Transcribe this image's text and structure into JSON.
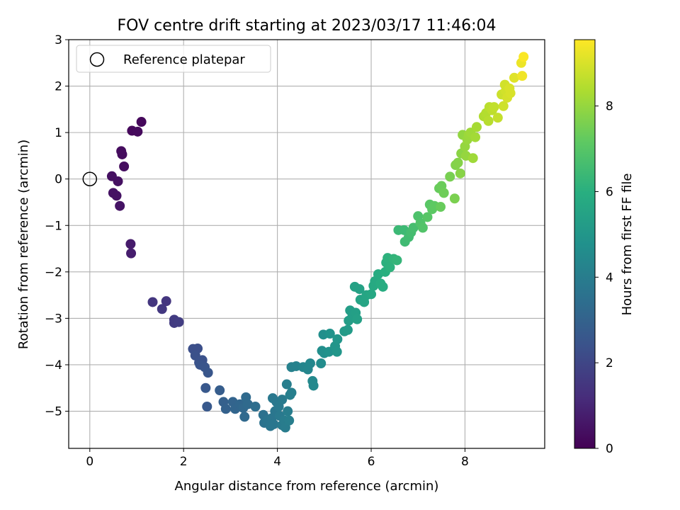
{
  "chart_data": {
    "type": "scatter",
    "title": "FOV centre drift starting at 2023/03/17 11:46:04",
    "xlabel": "Angular distance from reference (arcmin)",
    "ylabel": "Rotation from reference (arcmin)",
    "xlim": [
      -0.45,
      9.7
    ],
    "ylim": [
      -5.8,
      3.0
    ],
    "xticks": [
      0,
      2,
      4,
      6,
      8
    ],
    "yticks": [
      3,
      2,
      1,
      0,
      -1,
      -2,
      -3,
      -4,
      -5
    ],
    "grid": true,
    "legend": {
      "placement": "top-left",
      "entries": [
        "Reference platepar"
      ]
    },
    "reference_point": {
      "x": 0,
      "y": 0,
      "label": "Reference platepar"
    },
    "colorbar": {
      "label": "Hours from first FF file",
      "colormap": "viridis",
      "range": [
        0,
        9.55
      ],
      "ticks": [
        0,
        2,
        4,
        6,
        8
      ]
    },
    "series": [
      {
        "marker": "filled-circle",
        "colored_by": "Hours from first FF file",
        "points": [
          {
            "x": 1.1,
            "y": 1.23,
            "c": 0.2
          },
          {
            "x": 0.9,
            "y": 1.04,
            "c": 0.2
          },
          {
            "x": 1.02,
            "y": 1.02,
            "c": 0.25
          },
          {
            "x": 0.67,
            "y": 0.6,
            "c": 0.3
          },
          {
            "x": 0.69,
            "y": 0.53,
            "c": 0.3
          },
          {
            "x": 0.73,
            "y": 0.27,
            "c": 0.35
          },
          {
            "x": 0.47,
            "y": 0.06,
            "c": 0.4
          },
          {
            "x": 0.6,
            "y": -0.05,
            "c": 0.4
          },
          {
            "x": 0.5,
            "y": -0.3,
            "c": 0.45
          },
          {
            "x": 0.57,
            "y": -0.36,
            "c": 0.45
          },
          {
            "x": 0.64,
            "y": -0.58,
            "c": 0.5
          },
          {
            "x": 0.87,
            "y": -1.4,
            "c": 0.7
          },
          {
            "x": 0.88,
            "y": -1.6,
            "c": 0.75
          },
          {
            "x": 1.34,
            "y": -2.65,
            "c": 1.5
          },
          {
            "x": 1.54,
            "y": -2.8,
            "c": 1.55
          },
          {
            "x": 1.63,
            "y": -2.63,
            "c": 1.5
          },
          {
            "x": 1.8,
            "y": -3.03,
            "c": 1.65
          },
          {
            "x": 1.8,
            "y": -3.1,
            "c": 1.65
          },
          {
            "x": 1.9,
            "y": -3.08,
            "c": 1.7
          },
          {
            "x": 2.2,
            "y": -3.66,
            "c": 2.3
          },
          {
            "x": 2.3,
            "y": -3.65,
            "c": 2.3
          },
          {
            "x": 2.25,
            "y": -3.8,
            "c": 2.35
          },
          {
            "x": 2.33,
            "y": -3.95,
            "c": 2.4
          },
          {
            "x": 2.4,
            "y": -3.9,
            "c": 2.4
          },
          {
            "x": 2.35,
            "y": -4.0,
            "c": 2.45
          },
          {
            "x": 2.45,
            "y": -4.05,
            "c": 2.5
          },
          {
            "x": 2.52,
            "y": -4.17,
            "c": 2.55
          },
          {
            "x": 2.47,
            "y": -4.5,
            "c": 2.6
          },
          {
            "x": 2.5,
            "y": -4.9,
            "c": 2.65
          },
          {
            "x": 2.77,
            "y": -4.55,
            "c": 2.8
          },
          {
            "x": 2.85,
            "y": -4.8,
            "c": 2.9
          },
          {
            "x": 2.9,
            "y": -4.95,
            "c": 2.95
          },
          {
            "x": 3.05,
            "y": -4.8,
            "c": 3.05
          },
          {
            "x": 3.1,
            "y": -4.95,
            "c": 3.1
          },
          {
            "x": 3.2,
            "y": -4.85,
            "c": 3.15
          },
          {
            "x": 3.27,
            "y": -4.93,
            "c": 3.2
          },
          {
            "x": 3.3,
            "y": -5.12,
            "c": 3.25
          },
          {
            "x": 3.33,
            "y": -4.7,
            "c": 3.3
          },
          {
            "x": 3.37,
            "y": -4.85,
            "c": 3.3
          },
          {
            "x": 3.53,
            "y": -4.9,
            "c": 3.45
          },
          {
            "x": 3.7,
            "y": -5.08,
            "c": 3.55
          },
          {
            "x": 3.72,
            "y": -5.25,
            "c": 3.6
          },
          {
            "x": 3.78,
            "y": -5.2,
            "c": 3.65
          },
          {
            "x": 3.85,
            "y": -5.32,
            "c": 3.7
          },
          {
            "x": 3.88,
            "y": -5.15,
            "c": 3.7
          },
          {
            "x": 3.92,
            "y": -5.28,
            "c": 3.75
          },
          {
            "x": 3.95,
            "y": -5.0,
            "c": 3.75
          },
          {
            "x": 3.98,
            "y": -4.8,
            "c": 3.8
          },
          {
            "x": 3.9,
            "y": -4.72,
            "c": 3.8
          },
          {
            "x": 4.03,
            "y": -4.9,
            "c": 3.85
          },
          {
            "x": 4.05,
            "y": -5.1,
            "c": 3.85
          },
          {
            "x": 4.1,
            "y": -5.3,
            "c": 3.9
          },
          {
            "x": 4.1,
            "y": -4.75,
            "c": 3.9
          },
          {
            "x": 4.15,
            "y": -5.2,
            "c": 3.95
          },
          {
            "x": 4.17,
            "y": -5.35,
            "c": 3.95
          },
          {
            "x": 4.22,
            "y": -5.0,
            "c": 4.0
          },
          {
            "x": 4.25,
            "y": -5.2,
            "c": 4.05
          },
          {
            "x": 4.2,
            "y": -4.42,
            "c": 4.05
          },
          {
            "x": 4.27,
            "y": -4.65,
            "c": 4.1
          },
          {
            "x": 4.3,
            "y": -4.6,
            "c": 4.1
          },
          {
            "x": 4.3,
            "y": -4.05,
            "c": 4.15
          },
          {
            "x": 4.4,
            "y": -4.03,
            "c": 4.2
          },
          {
            "x": 4.55,
            "y": -4.05,
            "c": 4.3
          },
          {
            "x": 4.65,
            "y": -4.1,
            "c": 4.35
          },
          {
            "x": 4.7,
            "y": -3.97,
            "c": 4.4
          },
          {
            "x": 4.75,
            "y": -4.35,
            "c": 4.45
          },
          {
            "x": 4.77,
            "y": -4.45,
            "c": 4.45
          },
          {
            "x": 4.93,
            "y": -3.97,
            "c": 4.6
          },
          {
            "x": 4.95,
            "y": -3.7,
            "c": 4.65
          },
          {
            "x": 4.98,
            "y": -3.35,
            "c": 4.7
          },
          {
            "x": 5.0,
            "y": -3.75,
            "c": 4.7
          },
          {
            "x": 5.1,
            "y": -3.72,
            "c": 4.8
          },
          {
            "x": 5.12,
            "y": -3.33,
            "c": 4.85
          },
          {
            "x": 5.23,
            "y": -3.6,
            "c": 4.95
          },
          {
            "x": 5.28,
            "y": -3.45,
            "c": 5.0
          },
          {
            "x": 5.27,
            "y": -3.72,
            "c": 5.0
          },
          {
            "x": 5.43,
            "y": -3.28,
            "c": 5.15
          },
          {
            "x": 5.5,
            "y": -3.25,
            "c": 5.2
          },
          {
            "x": 5.52,
            "y": -3.05,
            "c": 5.25
          },
          {
            "x": 5.55,
            "y": -2.83,
            "c": 5.25
          },
          {
            "x": 5.6,
            "y": -2.95,
            "c": 5.3
          },
          {
            "x": 5.67,
            "y": -2.88,
            "c": 5.35
          },
          {
            "x": 5.7,
            "y": -3.02,
            "c": 5.4
          },
          {
            "x": 5.65,
            "y": -2.32,
            "c": 5.45
          },
          {
            "x": 5.75,
            "y": -2.37,
            "c": 5.45
          },
          {
            "x": 5.77,
            "y": -2.6,
            "c": 5.5
          },
          {
            "x": 5.85,
            "y": -2.65,
            "c": 5.55
          },
          {
            "x": 5.9,
            "y": -2.5,
            "c": 5.6
          },
          {
            "x": 6.0,
            "y": -2.48,
            "c": 5.7
          },
          {
            "x": 6.05,
            "y": -2.3,
            "c": 5.75
          },
          {
            "x": 6.08,
            "y": -2.2,
            "c": 5.75
          },
          {
            "x": 6.15,
            "y": -2.05,
            "c": 5.85
          },
          {
            "x": 6.2,
            "y": -2.25,
            "c": 5.9
          },
          {
            "x": 6.25,
            "y": -2.32,
            "c": 5.9
          },
          {
            "x": 6.3,
            "y": -2.0,
            "c": 6.0
          },
          {
            "x": 6.32,
            "y": -1.8,
            "c": 6.05
          },
          {
            "x": 6.35,
            "y": -1.7,
            "c": 6.1
          },
          {
            "x": 6.4,
            "y": -1.9,
            "c": 6.1
          },
          {
            "x": 6.48,
            "y": -1.72,
            "c": 6.2
          },
          {
            "x": 6.55,
            "y": -1.75,
            "c": 6.25
          },
          {
            "x": 6.58,
            "y": -1.1,
            "c": 6.4
          },
          {
            "x": 6.7,
            "y": -1.1,
            "c": 6.45
          },
          {
            "x": 6.72,
            "y": -1.35,
            "c": 6.5
          },
          {
            "x": 6.8,
            "y": -1.25,
            "c": 6.55
          },
          {
            "x": 6.85,
            "y": -1.15,
            "c": 6.6
          },
          {
            "x": 6.9,
            "y": -1.05,
            "c": 6.65
          },
          {
            "x": 7.0,
            "y": -0.8,
            "c": 6.8
          },
          {
            "x": 7.05,
            "y": -0.95,
            "c": 6.85
          },
          {
            "x": 7.1,
            "y": -1.05,
            "c": 6.9
          },
          {
            "x": 7.2,
            "y": -0.82,
            "c": 7.0
          },
          {
            "x": 7.25,
            "y": -0.55,
            "c": 7.05
          },
          {
            "x": 7.3,
            "y": -0.65,
            "c": 7.1
          },
          {
            "x": 7.35,
            "y": -0.58,
            "c": 7.15
          },
          {
            "x": 7.45,
            "y": -0.2,
            "c": 7.3
          },
          {
            "x": 7.48,
            "y": -0.6,
            "c": 7.3
          },
          {
            "x": 7.5,
            "y": -0.15,
            "c": 7.35
          },
          {
            "x": 7.55,
            "y": -0.3,
            "c": 7.4
          },
          {
            "x": 7.68,
            "y": 0.05,
            "c": 7.55
          },
          {
            "x": 7.78,
            "y": -0.42,
            "c": 7.6
          },
          {
            "x": 7.8,
            "y": 0.3,
            "c": 7.7
          },
          {
            "x": 7.85,
            "y": 0.35,
            "c": 7.75
          },
          {
            "x": 7.9,
            "y": 0.12,
            "c": 7.8
          },
          {
            "x": 7.92,
            "y": 0.55,
            "c": 7.85
          },
          {
            "x": 7.95,
            "y": 0.95,
            "c": 7.95
          },
          {
            "x": 8.0,
            "y": 0.7,
            "c": 8.0
          },
          {
            "x": 8.02,
            "y": 0.5,
            "c": 8.0
          },
          {
            "x": 8.05,
            "y": 0.85,
            "c": 8.05
          },
          {
            "x": 8.08,
            "y": 0.95,
            "c": 8.1
          },
          {
            "x": 8.12,
            "y": 1.0,
            "c": 8.15
          },
          {
            "x": 8.17,
            "y": 0.45,
            "c": 8.15
          },
          {
            "x": 8.22,
            "y": 0.9,
            "c": 8.2
          },
          {
            "x": 8.25,
            "y": 1.12,
            "c": 8.25
          },
          {
            "x": 8.4,
            "y": 1.35,
            "c": 8.4
          },
          {
            "x": 8.45,
            "y": 1.42,
            "c": 8.45
          },
          {
            "x": 8.5,
            "y": 1.25,
            "c": 8.5
          },
          {
            "x": 8.52,
            "y": 1.55,
            "c": 8.55
          },
          {
            "x": 8.58,
            "y": 1.48,
            "c": 8.6
          },
          {
            "x": 8.62,
            "y": 1.55,
            "c": 8.65
          },
          {
            "x": 8.7,
            "y": 1.32,
            "c": 8.7
          },
          {
            "x": 8.78,
            "y": 1.82,
            "c": 8.8
          },
          {
            "x": 8.82,
            "y": 1.57,
            "c": 8.85
          },
          {
            "x": 8.85,
            "y": 2.03,
            "c": 8.9
          },
          {
            "x": 8.87,
            "y": 1.9,
            "c": 8.9
          },
          {
            "x": 8.9,
            "y": 1.75,
            "c": 8.95
          },
          {
            "x": 8.95,
            "y": 1.95,
            "c": 9.0
          },
          {
            "x": 8.97,
            "y": 1.85,
            "c": 9.0
          },
          {
            "x": 9.05,
            "y": 2.18,
            "c": 9.1
          },
          {
            "x": 9.2,
            "y": 2.5,
            "c": 9.3
          },
          {
            "x": 9.22,
            "y": 2.22,
            "c": 9.35
          },
          {
            "x": 9.25,
            "y": 2.63,
            "c": 9.5
          }
        ]
      }
    ]
  }
}
